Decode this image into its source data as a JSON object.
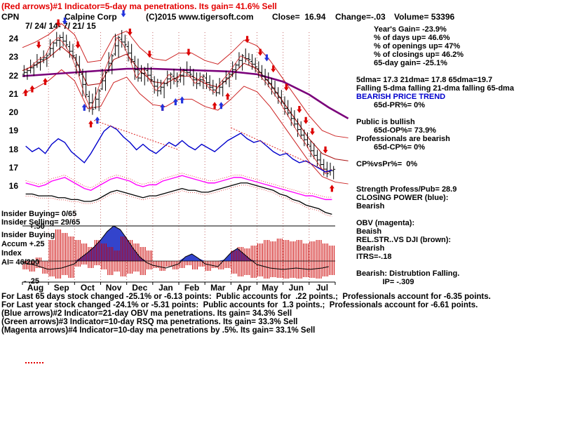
{
  "title_line": {
    "text": "(Red arrows)#1 Indicator=5-day ma penetrations. Its gain= 41.6% Sell"
  },
  "header": {
    "symbol": "CPN",
    "company": "Calpine Corp",
    "copyright": "(C)2015 www.tigersoft.com",
    "close": "Close=  16.94",
    "change": "Change=-.03",
    "volume": "Volume= 53396",
    "date_range": "7/ 24/ 14- 7/ 21/ 15"
  },
  "right_panel": {
    "lines": [
      {
        "t": "Year's Gain= -23.9%",
        "ind": 1
      },
      {
        "t": "% of days up= 46.6%",
        "ind": 1
      },
      {
        "t": "% of openings up= 47%",
        "ind": 1
      },
      {
        "t": "% of closings up= 46.2%",
        "ind": 1
      },
      {
        "t": "65-day gain= -25.1%",
        "ind": 1
      },
      {
        "t": ""
      },
      {
        "t": "5dma= 17.3 21dma= 17.8 65dma=19.7"
      },
      {
        "t": "Falling 5-dma falling 21-dma falling 65-dma"
      },
      {
        "t": "BEARISH PRICE TREND",
        "color": "#0000cc"
      },
      {
        "t": "65d-PR%= 0%",
        "ind": 1
      },
      {
        "t": ""
      },
      {
        "t": "Public is bullish"
      },
      {
        "t": "65d-OP%= 73.9%",
        "ind": 1
      },
      {
        "t": "Professionals are bearish"
      },
      {
        "t": "65d-CP%= 0%",
        "ind": 1
      },
      {
        "t": ""
      },
      {
        "t": "CP%vsPr%=  0%"
      },
      {
        "t": ""
      },
      {
        "t": ""
      },
      {
        "t": "Strength Profess/Pub= 28.9"
      },
      {
        "t": "CLOSING POWER (blue):"
      },
      {
        "t": "Bearish"
      },
      {
        "t": ""
      },
      {
        "t": "OBV (magenta):"
      },
      {
        "t": "Beaish"
      },
      {
        "t": "REL.STR..VS DJI (brown):"
      },
      {
        "t": "Bearish"
      },
      {
        "t": "ITRS=-.18"
      },
      {
        "t": ""
      },
      {
        "t": "Bearish: Distrubtion Falling."
      },
      {
        "t": "IP= -.309",
        "ind": 1.5
      }
    ]
  },
  "left_overlay": {
    "insider_buying": "Insider Buying= 0/65",
    "insider_selling": "Insider Selling= 29/65",
    "hist_top": "+.50",
    "hist_bottom": "- .25",
    "accum_lines": [
      "Insider Buying",
      "Accum +.25",
      "Index",
      "AI= 46/200"
    ]
  },
  "bottom_lines": [
    "For Last 65 days stock changed -25.1% or -6.13 points:  Public accounts for  .22 points.;  Professionals account for -6.35 points.",
    "For Last year stock changed -24.1% or -5.31 points:  Public accounts for  1.3 points.;  Professionals account for -6.61 points.",
    "(Blue arrows)#2 Indicator=21-day OBV ma penetrations. Its gain= 34.3% Sell",
    "(Green arrows)#3 Indicator=10-day RSQ ma penetrations. Its gain= 33.3% Sell",
    "(Magenta arrows)#4 Indicator=10-day ma penetrations by .5%. Its gain= 33.1% Sell"
  ],
  "chart_data": {
    "type": "candlestick_with_indicators",
    "title": "CPN Calpine Corp 7/24/14 - 7/21/15",
    "ylim": [
      15.8,
      24.6
    ],
    "y_ticks": [
      24,
      23,
      22,
      21,
      20,
      19,
      18,
      17,
      16
    ],
    "x_months": [
      "Aug",
      "Sep",
      "Oct",
      "Nov",
      "Dec",
      "Jan",
      "Feb",
      "Mar",
      "Apr",
      "May",
      "Jun",
      "Jul"
    ],
    "weekly_ohlc": [
      [
        22.1,
        22.6,
        21.8,
        22.3
      ],
      [
        22.3,
        22.9,
        22.0,
        22.6
      ],
      [
        22.6,
        23.2,
        22.3,
        22.9
      ],
      [
        22.9,
        23.4,
        22.5,
        23.1
      ],
      [
        23.2,
        24.0,
        23.0,
        23.8
      ],
      [
        23.8,
        24.4,
        23.4,
        24.1
      ],
      [
        24.1,
        24.4,
        23.5,
        23.7
      ],
      [
        23.6,
        23.9,
        22.9,
        23.1
      ],
      [
        23.0,
        23.2,
        22.0,
        22.2
      ],
      [
        22.1,
        22.4,
        20.8,
        21.0
      ],
      [
        20.9,
        21.2,
        19.9,
        20.2
      ],
      [
        20.3,
        21.4,
        20.1,
        21.2
      ],
      [
        21.3,
        22.4,
        21.2,
        22.2
      ],
      [
        22.3,
        23.3,
        22.1,
        23.1
      ],
      [
        23.2,
        24.3,
        23.0,
        24.1
      ],
      [
        24.0,
        24.5,
        23.4,
        23.7
      ],
      [
        23.6,
        23.9,
        22.7,
        22.9
      ],
      [
        22.8,
        23.1,
        21.7,
        21.9
      ],
      [
        21.9,
        22.6,
        21.5,
        22.4
      ],
      [
        22.3,
        22.7,
        21.6,
        21.8
      ],
      [
        21.7,
        22.0,
        20.9,
        21.2
      ],
      [
        21.2,
        21.8,
        20.8,
        21.6
      ],
      [
        21.6,
        22.3,
        21.3,
        22.1
      ],
      [
        22.0,
        22.4,
        21.4,
        21.7
      ],
      [
        21.8,
        22.5,
        21.5,
        22.3
      ],
      [
        22.3,
        22.8,
        21.9,
        22.1
      ],
      [
        22.0,
        22.4,
        21.3,
        21.6
      ],
      [
        21.6,
        22.2,
        21.3,
        22.0
      ],
      [
        21.9,
        22.2,
        21.2,
        21.4
      ],
      [
        21.4,
        21.8,
        20.9,
        21.1
      ],
      [
        21.1,
        21.9,
        20.9,
        21.7
      ],
      [
        21.7,
        22.3,
        21.4,
        22.1
      ],
      [
        22.1,
        22.8,
        21.8,
        22.6
      ],
      [
        22.6,
        23.3,
        22.3,
        23.1
      ],
      [
        23.0,
        23.5,
        22.6,
        22.9
      ],
      [
        22.8,
        23.2,
        22.2,
        22.5
      ],
      [
        22.4,
        22.8,
        21.8,
        22.0
      ],
      [
        22.0,
        22.4,
        21.4,
        21.6
      ],
      [
        21.6,
        21.9,
        20.9,
        21.1
      ],
      [
        21.1,
        21.4,
        20.4,
        20.6
      ],
      [
        20.5,
        20.9,
        19.8,
        20.0
      ],
      [
        20.0,
        20.3,
        19.2,
        19.4
      ],
      [
        19.4,
        19.7,
        18.6,
        18.8
      ],
      [
        18.8,
        19.1,
        18.1,
        18.3
      ],
      [
        18.2,
        18.5,
        17.5,
        17.7
      ],
      [
        17.7,
        18.0,
        17.0,
        17.2
      ],
      [
        17.2,
        17.5,
        16.5,
        16.7
      ],
      [
        16.8,
        17.3,
        16.4,
        16.94
      ]
    ],
    "ma65_purple": [
      [
        0,
        22.0
      ],
      [
        4,
        22.1
      ],
      [
        8,
        22.2
      ],
      [
        12,
        22.3
      ],
      [
        16,
        22.4
      ],
      [
        20,
        22.4
      ],
      [
        24,
        22.35
      ],
      [
        28,
        22.3
      ],
      [
        32,
        22.25
      ],
      [
        36,
        22.1
      ],
      [
        40,
        21.7
      ],
      [
        44,
        21.0
      ],
      [
        47,
        20.3
      ],
      [
        50,
        19.7
      ]
    ],
    "band_center": [
      [
        0,
        22.3
      ],
      [
        2,
        22.6
      ],
      [
        4,
        23.0
      ],
      [
        6,
        23.6
      ],
      [
        8,
        23.0
      ],
      [
        10,
        21.5
      ],
      [
        12,
        21.6
      ],
      [
        14,
        22.9
      ],
      [
        16,
        23.2
      ],
      [
        18,
        22.3
      ],
      [
        20,
        21.7
      ],
      [
        22,
        21.6
      ],
      [
        24,
        22.0
      ],
      [
        26,
        22.0
      ],
      [
        28,
        21.6
      ],
      [
        30,
        21.4
      ],
      [
        32,
        22.0
      ],
      [
        34,
        22.7
      ],
      [
        36,
        22.4
      ],
      [
        38,
        21.6
      ],
      [
        40,
        20.6
      ],
      [
        42,
        19.6
      ],
      [
        44,
        18.6
      ],
      [
        46,
        17.8
      ],
      [
        48,
        17.5
      ],
      [
        50,
        17.4
      ]
    ],
    "band_halfwidth": 1.25,
    "closing_power": [
      18.2,
      17.9,
      18.1,
      17.8,
      18.3,
      18.6,
      18.4,
      17.9,
      17.6,
      17.3,
      17.8,
      18.4,
      19.0,
      19.3,
      19.1,
      18.7,
      18.4,
      18.0,
      18.3,
      18.0,
      17.8,
      18.1,
      18.4,
      18.2,
      18.5,
      18.2,
      18.0,
      18.3,
      18.1,
      17.9,
      18.2,
      18.5,
      18.7,
      18.9,
      18.6,
      18.4,
      18.5,
      18.2,
      17.9,
      17.7,
      17.8,
      17.5,
      17.3,
      17.4,
      17.2,
      17.0,
      16.8,
      16.9
    ],
    "cp_trendlines": [
      [
        [
          11,
          19.6
        ],
        [
          24,
          18.0
        ]
      ],
      [
        [
          32,
          19.2
        ],
        [
          47,
          16.8
        ]
      ]
    ],
    "obv": [
      16.2,
      16.1,
      16.0,
      16.1,
      16.3,
      16.4,
      16.5,
      16.3,
      16.1,
      15.9,
      15.8,
      16.0,
      16.2,
      16.4,
      16.5,
      16.4,
      16.3,
      16.1,
      16.0,
      16.1,
      16.1,
      16.3,
      16.4,
      16.5,
      16.6,
      16.5,
      16.4,
      16.3,
      16.2,
      16.2,
      16.3,
      16.4,
      16.5,
      16.5,
      16.4,
      16.3,
      16.2,
      16.1,
      16.0,
      15.9,
      15.8,
      15.7,
      15.6,
      15.5,
      15.5,
      15.4,
      15.3,
      15.3
    ],
    "rel_strength": [
      15.6,
      15.6,
      15.5,
      15.5,
      15.5,
      15.4,
      15.4,
      15.3,
      15.3,
      15.2,
      15.2,
      15.3,
      15.5,
      15.7,
      15.8,
      15.7,
      15.6,
      15.5,
      15.4,
      15.5,
      15.5,
      15.6,
      15.7,
      15.8,
      15.9,
      15.8,
      15.8,
      15.7,
      15.7,
      15.8,
      15.9,
      16.0,
      16.1,
      16.2,
      16.2,
      16.1,
      16.0,
      15.9,
      15.8,
      15.6,
      15.5,
      15.3,
      15.2,
      15.0,
      14.9,
      14.8,
      14.6,
      14.5
    ],
    "accum_line": [
      [
        0,
        -0.02
      ],
      [
        2,
        -0.06
      ],
      [
        4,
        -0.12
      ],
      [
        6,
        -0.1
      ],
      [
        8,
        -0.04
      ],
      [
        9,
        0.05
      ],
      [
        10,
        0.12
      ],
      [
        11,
        0.2
      ],
      [
        12,
        0.3
      ],
      [
        13,
        0.42
      ],
      [
        14,
        0.5
      ],
      [
        15,
        0.45
      ],
      [
        16,
        0.32
      ],
      [
        17,
        0.18
      ],
      [
        18,
        0.06
      ],
      [
        19,
        -0.02
      ],
      [
        20,
        -0.06
      ],
      [
        22,
        -0.1
      ],
      [
        24,
        -0.04
      ],
      [
        25,
        0.06
      ],
      [
        26,
        0.1
      ],
      [
        27,
        0.04
      ],
      [
        28,
        -0.04
      ],
      [
        30,
        -0.08
      ],
      [
        31,
        0.02
      ],
      [
        32,
        0.12
      ],
      [
        33,
        0.18
      ],
      [
        34,
        0.1
      ],
      [
        35,
        0.02
      ],
      [
        36,
        -0.05
      ],
      [
        38,
        -0.1
      ],
      [
        40,
        -0.12
      ],
      [
        42,
        -0.1
      ],
      [
        44,
        -0.12
      ],
      [
        46,
        -0.1
      ],
      [
        47,
        -0.08
      ]
    ],
    "hist_range": [
      -0.25,
      0.5
    ],
    "hist_down": [
      0.12,
      0.15,
      0.1,
      0.18,
      0.22,
      0.25,
      0.2,
      0.24,
      0.08,
      0.05,
      0.1,
      0.06,
      0.12,
      0.2,
      0.15,
      0.22,
      0.18,
      0.15,
      0.2,
      0.12,
      0.1,
      0.14,
      0.08,
      0.12,
      0.1,
      0.06,
      0.12,
      0.08,
      0.14,
      0.1,
      0.12,
      0.1,
      0.18,
      0.22,
      0.2,
      0.24,
      0.22,
      0.25,
      0.23,
      0.24,
      0.25,
      0.24,
      0.25,
      0.23,
      0.24,
      0.25,
      0.22,
      0.2
    ],
    "hist_up": [
      0,
      0,
      0.05,
      0,
      0.3,
      0.45,
      0.4,
      0.35,
      0.3,
      0.25,
      0.2,
      0.3,
      0.25,
      0.2,
      0.15,
      0.35,
      0.3,
      0.25,
      0.2,
      0.15,
      0,
      0,
      0,
      0,
      0,
      0,
      0,
      0,
      0,
      0,
      0,
      0,
      0.15,
      0.2,
      0.18,
      0.22,
      0.25,
      0.3,
      0.28,
      0.32,
      0.3,
      0.28,
      0.3,
      0.25,
      0.28,
      0.3,
      0.25,
      0.22
    ],
    "arrows": {
      "red_down": [
        [
          2,
          23.5
        ],
        [
          5,
          24.7
        ],
        [
          8,
          23.5
        ],
        [
          16,
          24.2
        ],
        [
          19,
          23.0
        ],
        [
          25,
          23.1
        ],
        [
          34,
          23.8
        ],
        [
          36,
          23.1
        ],
        [
          38,
          22.2
        ],
        [
          40,
          21.2
        ],
        [
          42,
          20.0
        ],
        [
          43,
          19.4
        ],
        [
          44,
          18.8
        ],
        [
          46,
          17.8
        ]
      ],
      "red_up": [
        [
          0,
          21.3
        ],
        [
          1,
          21.5
        ],
        [
          3,
          21.9
        ],
        [
          10,
          19.6
        ],
        [
          21,
          20.5
        ],
        [
          29,
          20.6
        ],
        [
          31,
          21.1
        ],
        [
          47,
          16.1
        ]
      ],
      "blue_down": [
        [
          6,
          24.8
        ],
        [
          15,
          25.2
        ],
        [
          37,
          22.8
        ]
      ],
      "blue_up": [
        [
          9,
          20.5
        ],
        [
          11,
          19.8
        ],
        [
          21,
          20.5
        ],
        [
          23,
          20.8
        ],
        [
          24,
          20.9
        ],
        [
          30,
          20.6
        ]
      ]
    },
    "colors": {
      "candle": "#000000",
      "bands": "#cc2222",
      "ma65": "#7a007a",
      "closing_power": "#0000cc",
      "obv": "#ff00ff",
      "rel_strength": "#000000",
      "histogram": "#cc0000",
      "accum_fill": "#3344cc",
      "arrow_red": "#dd0000",
      "arrow_blue": "#2233dd"
    }
  }
}
